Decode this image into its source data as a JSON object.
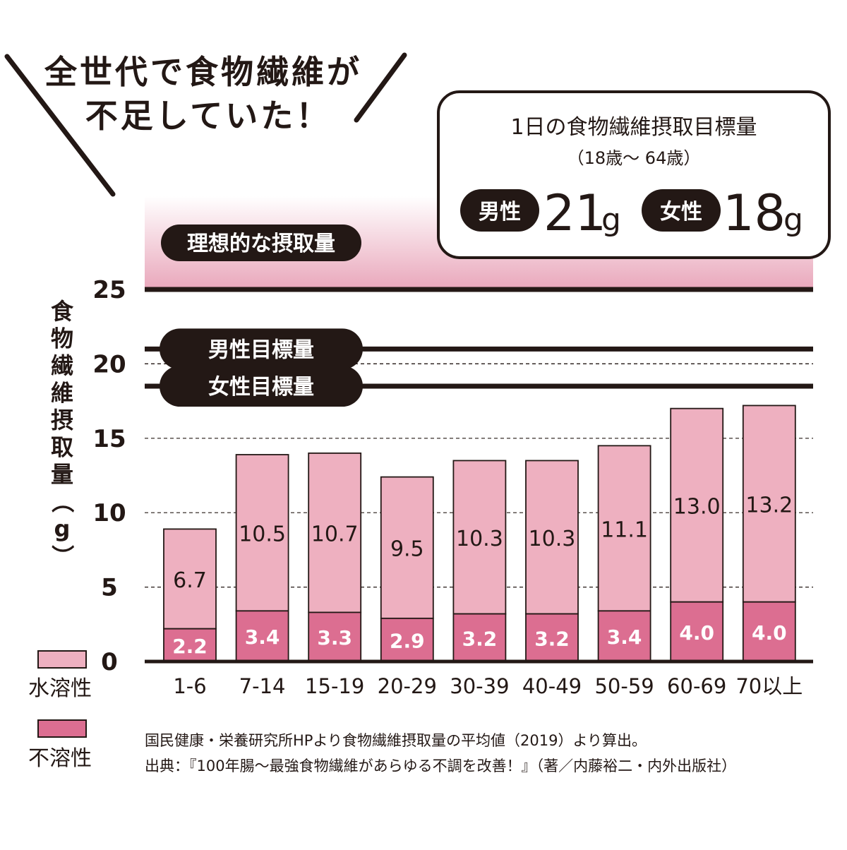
{
  "headline": {
    "line1": "全世代で食物繊維が",
    "line2": "不足していた！"
  },
  "target_box": {
    "title": "1日の食物繊維摂取目標量",
    "subtitle": "（18歳～ 64歳）",
    "male_label": "男性",
    "male_value": "21",
    "male_unit": "g",
    "female_label": "女性",
    "female_value": "18",
    "female_unit": "g"
  },
  "reference_lines": {
    "ideal_label": "理想的な摂取量",
    "ideal_value": 25,
    "male_label": "男性目標量",
    "male_value": 21,
    "female_label": "女性目標量",
    "female_value": 18.5
  },
  "legend": {
    "soluble": "水溶性",
    "insoluble": "不溶性"
  },
  "footnote": {
    "line1": "国民健康・栄養研究所HPより食物繊維摂取量の平均値（2019）より算出。",
    "line2": "出典：『100年腸～最強食物繊維があらゆる不調を改善！』（著／内藤裕二・内外出版社）"
  },
  "colors": {
    "soluble": "#eeb0c0",
    "insoluble": "#dc6e91",
    "ink": "#231815",
    "ideal_band": "#e9a7bb"
  },
  "chart_data": {
    "type": "bar",
    "stacked": true,
    "ylabel": "食物繊維摂取量（g）",
    "ylim": [
      0,
      25
    ],
    "yticks": [
      0,
      5,
      10,
      15,
      20,
      25
    ],
    "grid": "dashed horizontal",
    "categories": [
      "1-6",
      "7-14",
      "15-19",
      "20-29",
      "30-39",
      "40-49",
      "50-59",
      "60-69",
      "70以上"
    ],
    "series": [
      {
        "name": "不溶性",
        "values": [
          2.2,
          3.4,
          3.3,
          2.9,
          3.2,
          3.2,
          3.4,
          4.0,
          4.0
        ]
      },
      {
        "name": "水溶性",
        "values": [
          6.7,
          10.5,
          10.7,
          9.5,
          10.3,
          10.3,
          11.1,
          13.0,
          13.2
        ]
      }
    ],
    "labels": {
      "insoluble": [
        "2.2",
        "3.4",
        "3.3",
        "2.9",
        "3.2",
        "3.2",
        "3.4",
        "4.0",
        "4.0"
      ],
      "soluble": [
        "6.7",
        "10.5",
        "10.7",
        "9.5",
        "10.3",
        "10.3",
        "11.1",
        "13.0",
        "13.2"
      ]
    }
  }
}
